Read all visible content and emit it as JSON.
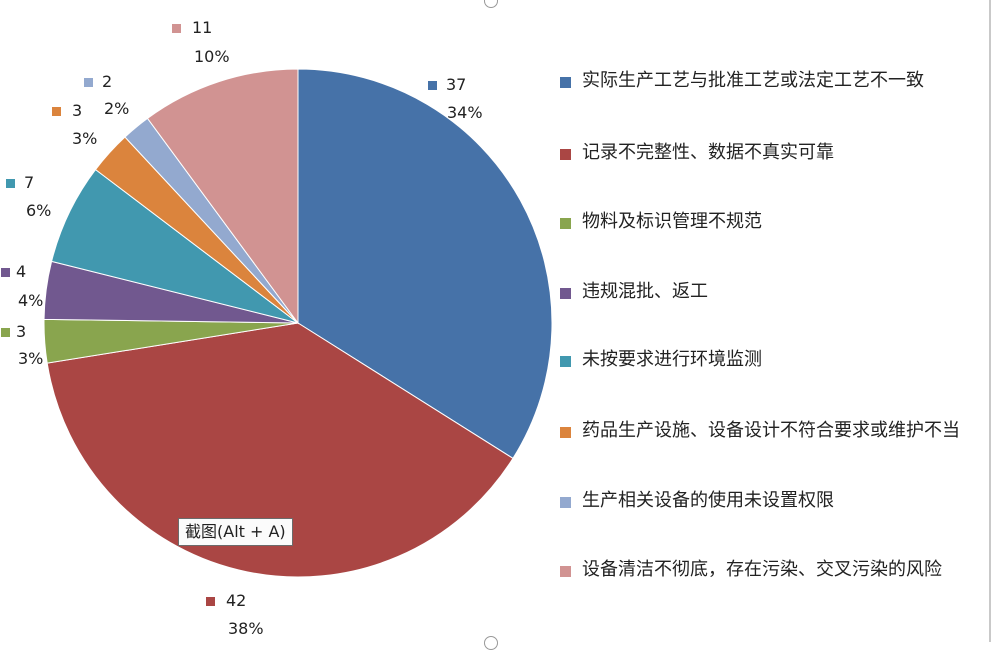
{
  "chart_data": {
    "type": "pie",
    "title": "",
    "slices": [
      {
        "name": "实际生产工艺与批准工艺或法定工艺不一致",
        "value": 37,
        "percent": "34%",
        "color": "#4672a8"
      },
      {
        "name": "记录不完整性、数据不真实可靠",
        "value": 42,
        "percent": "38%",
        "color": "#aa4644"
      },
      {
        "name": "物料及标识管理不规范",
        "value": 3,
        "percent": "3%",
        "color": "#89a54e"
      },
      {
        "name": "违规混批、返工",
        "value": 4,
        "percent": "4%",
        "color": "#71588f"
      },
      {
        "name": "未按要求进行环境监测",
        "value": 7,
        "percent": "6%",
        "color": "#4198af"
      },
      {
        "name": "药品生产设施、设备设计不符合要求或维护不当",
        "value": 3,
        "percent": "3%",
        "color": "#db843d"
      },
      {
        "name": "生产相关设备的使用未设置权限",
        "value": 2,
        "percent": "2%",
        "color": "#93a9cf"
      },
      {
        "name": "设备清洁不彻底，存在污染、交叉污染的风险",
        "value": 11,
        "percent": "10%",
        "color": "#d19392"
      }
    ],
    "start_angle_deg": 0,
    "direction": "clockwise",
    "legend_position": "right"
  },
  "tooltip": {
    "text": "截图(Alt + A)"
  }
}
